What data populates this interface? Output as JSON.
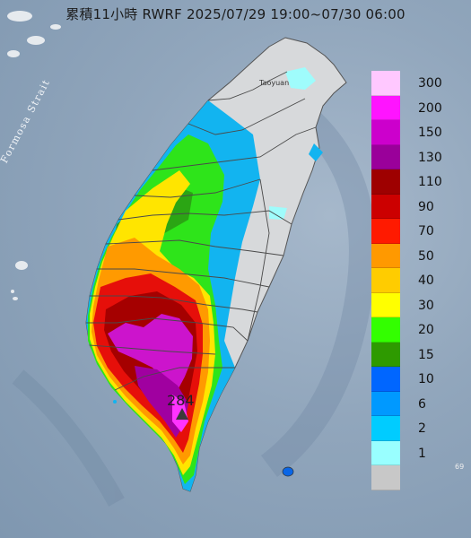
{
  "title": "累積11小時 RWRF 2025/07/29 19:00~07/30 06:00",
  "strait_label": "Formosa Strait",
  "city_label": "Taoyuan",
  "max_value": "284",
  "corner_label": "69",
  "legend": [
    {
      "label": "300",
      "color": "#ffc8ff"
    },
    {
      "label": "200",
      "color": "#ff14ff"
    },
    {
      "label": "150",
      "color": "#cc00cc"
    },
    {
      "label": "130",
      "color": "#9a009a"
    },
    {
      "label": "110",
      "color": "#9e0000"
    },
    {
      "label": "90",
      "color": "#cc0000"
    },
    {
      "label": "70",
      "color": "#ff1a00"
    },
    {
      "label": "50",
      "color": "#ff9900"
    },
    {
      "label": "40",
      "color": "#ffcc00"
    },
    {
      "label": "30",
      "color": "#ffff00"
    },
    {
      "label": "20",
      "color": "#33ff00"
    },
    {
      "label": "15",
      "color": "#2e9a00"
    },
    {
      "label": "10",
      "color": "#0066ff"
    },
    {
      "label": "6",
      "color": "#0099ff"
    },
    {
      "label": "2",
      "color": "#00ccff"
    },
    {
      "label": "1",
      "color": "#99ffff"
    },
    {
      "label": "",
      "color": "#c8c8c8"
    }
  ]
}
